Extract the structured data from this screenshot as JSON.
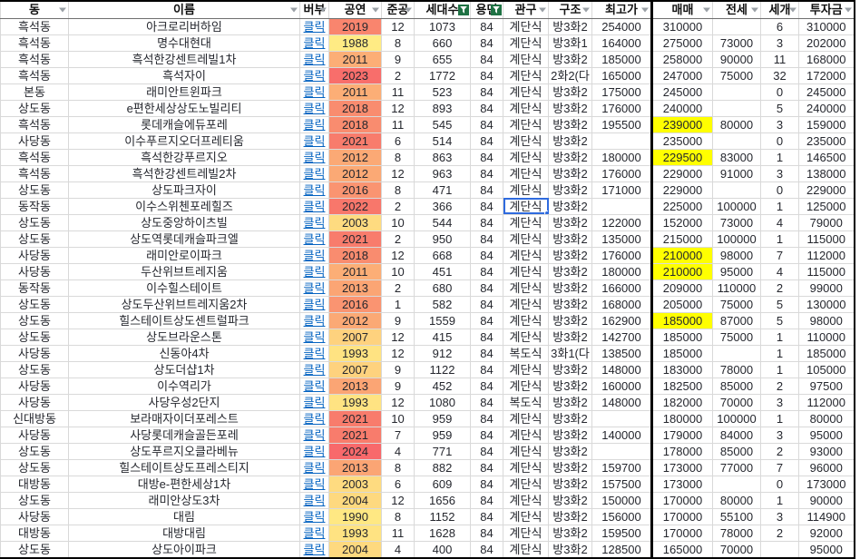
{
  "app": "spreadsheet-apartment-list",
  "link_label": "클릭",
  "colors": {
    "highlight_yellow": "#FFFF00",
    "link_blue": "#0563C1",
    "selection_blue": "#2F6BDE",
    "active_filter_green": "#1F7244",
    "grid_line": "#D9D9D9",
    "thick_border": "#000000"
  },
  "header": {
    "columns": [
      {
        "key": "dong",
        "label": "동",
        "filter": "normal"
      },
      {
        "key": "name",
        "label": "이름",
        "filter": "normal"
      },
      {
        "key": "link",
        "label": "버부",
        "filter": "normal"
      },
      {
        "key": "year",
        "label": "공연",
        "filter": "normal"
      },
      {
        "key": "month",
        "label": "준공",
        "filter": "normal"
      },
      {
        "key": "households",
        "label": "세대수",
        "filter": "active"
      },
      {
        "key": "area",
        "label": "용면",
        "filter": "active"
      },
      {
        "key": "entrance",
        "label": "관구",
        "filter": "normal"
      },
      {
        "key": "layout",
        "label": "구조",
        "filter": "normal"
      },
      {
        "key": "peak",
        "label": "최고가",
        "filter": "normal"
      },
      {
        "key": "sale",
        "label": "매매",
        "filter": "normal"
      },
      {
        "key": "jeonse",
        "label": "전세",
        "filter": "normal"
      },
      {
        "key": "count",
        "label": "세개",
        "filter": "normal"
      },
      {
        "key": "invest",
        "label": "투자금",
        "filter": "normal"
      }
    ]
  },
  "selected": {
    "row": 11,
    "column": "entrance"
  },
  "rows": [
    {
      "dong": "흑석동",
      "name": "아크로리버하임",
      "year": "2019",
      "year_color": "#F9856E",
      "month": "12",
      "households": "1073",
      "area": "84",
      "entrance": "계단식",
      "layout": "방3화2",
      "peak": "254000",
      "sale": "310000",
      "sale_hl": false,
      "jeonse": "",
      "count": "6",
      "invest": "310000"
    },
    {
      "dong": "흑석동",
      "name": "명수대현대",
      "year": "1988",
      "year_color": "#FFEB84",
      "month": "8",
      "households": "660",
      "area": "84",
      "entrance": "계단식",
      "layout": "방3화1",
      "peak": "164000",
      "sale": "275000",
      "sale_hl": false,
      "jeonse": "73000",
      "count": "3",
      "invest": "202000"
    },
    {
      "dong": "흑석동",
      "name": "흑석한강센트레빌1차",
      "year": "2011",
      "year_color": "#FCAE76",
      "month": "9",
      "households": "655",
      "area": "84",
      "entrance": "계단식",
      "layout": "방3화2",
      "peak": "185000",
      "sale": "258000",
      "sale_hl": false,
      "jeonse": "90000",
      "count": "11",
      "invest": "168000"
    },
    {
      "dong": "흑석동",
      "name": "흑석자이",
      "year": "2023",
      "year_color": "#F86E6B",
      "month": "2",
      "households": "1772",
      "area": "84",
      "entrance": "계단식",
      "layout": "2화2(다",
      "peak": "165000",
      "sale": "247000",
      "sale_hl": false,
      "jeonse": "75000",
      "count": "32",
      "invest": "172000"
    },
    {
      "dong": "본동",
      "name": "래미안트윈파크",
      "year": "2011",
      "year_color": "#FCAE76",
      "month": "11",
      "households": "523",
      "area": "84",
      "entrance": "계단식",
      "layout": "방3화2",
      "peak": "175000",
      "sale": "245000",
      "sale_hl": false,
      "jeonse": "",
      "count": "0",
      "invest": "245000"
    },
    {
      "dong": "상도동",
      "name": "e편한세상상도노빌리티",
      "year": "2018",
      "year_color": "#F98C6F",
      "month": "12",
      "households": "893",
      "area": "84",
      "entrance": "계단식",
      "layout": "방3화2",
      "peak": "176000",
      "sale": "240000",
      "sale_hl": false,
      "jeonse": "",
      "count": "5",
      "invest": "240000"
    },
    {
      "dong": "흑석동",
      "name": "롯데캐슬에듀포레",
      "year": "2018",
      "year_color": "#F98C6F",
      "month": "11",
      "households": "545",
      "area": "84",
      "entrance": "계단식",
      "layout": "방3화2",
      "peak": "195500",
      "sale": "239000",
      "sale_hl": true,
      "jeonse": "80000",
      "count": "3",
      "invest": "159000"
    },
    {
      "dong": "사당동",
      "name": "이수푸르지오더프레티움",
      "year": "2021",
      "year_color": "#F87C6C",
      "month": "6",
      "households": "514",
      "area": "84",
      "entrance": "계단식",
      "layout": "방3화2",
      "peak": "",
      "sale": "235000",
      "sale_hl": false,
      "jeonse": "",
      "count": "0",
      "invest": "235000"
    },
    {
      "dong": "흑석동",
      "name": "흑석한강푸르지오",
      "year": "2012",
      "year_color": "#FBA975",
      "month": "8",
      "households": "863",
      "area": "84",
      "entrance": "계단식",
      "layout": "방3화2",
      "peak": "180000",
      "sale": "229500",
      "sale_hl": true,
      "jeonse": "83000",
      "count": "1",
      "invest": "146500"
    },
    {
      "dong": "흑석동",
      "name": "흑석한강센트레빌2차",
      "year": "2012",
      "year_color": "#FBA975",
      "month": "12",
      "households": "963",
      "area": "84",
      "entrance": "계단식",
      "layout": "방3화2",
      "peak": "176000",
      "sale": "229000",
      "sale_hl": false,
      "jeonse": "91000",
      "count": "3",
      "invest": "138000"
    },
    {
      "dong": "상도동",
      "name": "상도파크자이",
      "year": "2016",
      "year_color": "#FA9471",
      "month": "8",
      "households": "471",
      "area": "84",
      "entrance": "계단식",
      "layout": "방3화2",
      "peak": "171000",
      "sale": "229000",
      "sale_hl": false,
      "jeonse": "",
      "count": "0",
      "invest": "229000"
    },
    {
      "dong": "동작동",
      "name": "이수스위첸포레힐즈",
      "year": "2022",
      "year_color": "#F8776B",
      "month": "2",
      "households": "366",
      "area": "84",
      "entrance": "계단식",
      "layout": "방3화2",
      "peak": "",
      "sale": "225000",
      "sale_hl": false,
      "jeonse": "100000",
      "count": "1",
      "invest": "125000"
    },
    {
      "dong": "상도동",
      "name": "상도중앙하이츠빌",
      "year": "2003",
      "year_color": "#FEDB80",
      "month": "10",
      "households": "544",
      "area": "84",
      "entrance": "계단식",
      "layout": "방3화2",
      "peak": "122000",
      "sale": "152000",
      "sale_hl": false,
      "jeonse": "73000",
      "count": "4",
      "invest": "79000"
    },
    {
      "dong": "상도동",
      "name": "상도역롯데캐슬파크엘",
      "year": "2021",
      "year_color": "#F87C6C",
      "month": "2",
      "households": "950",
      "area": "84",
      "entrance": "계단식",
      "layout": "방3화2",
      "peak": "135000",
      "sale": "215000",
      "sale_hl": false,
      "jeonse": "100000",
      "count": "1",
      "invest": "115000"
    },
    {
      "dong": "사당동",
      "name": "래미안로이파크",
      "year": "2018",
      "year_color": "#F98C6F",
      "month": "12",
      "households": "668",
      "area": "84",
      "entrance": "계단식",
      "layout": "방3화2",
      "peak": "176000",
      "sale": "210000",
      "sale_hl": true,
      "jeonse": "98000",
      "count": "7",
      "invest": "112000"
    },
    {
      "dong": "사당동",
      "name": "두산위브트레지움",
      "year": "2011",
      "year_color": "#FCAE76",
      "month": "10",
      "households": "451",
      "area": "84",
      "entrance": "계단식",
      "layout": "방3화2",
      "peak": "180000",
      "sale": "210000",
      "sale_hl": true,
      "jeonse": "95000",
      "count": "4",
      "invest": "115000"
    },
    {
      "dong": "동작동",
      "name": "이수힐스테이트",
      "year": "2013",
      "year_color": "#FBA574",
      "month": "2",
      "households": "680",
      "area": "84",
      "entrance": "계단식",
      "layout": "방3화2",
      "peak": "166000",
      "sale": "209000",
      "sale_hl": false,
      "jeonse": "110000",
      "count": "2",
      "invest": "99000"
    },
    {
      "dong": "상도동",
      "name": "상도두산위브트레지움2차",
      "year": "2016",
      "year_color": "#FA9471",
      "month": "1",
      "households": "582",
      "area": "84",
      "entrance": "계단식",
      "layout": "방3화2",
      "peak": "168000",
      "sale": "205000",
      "sale_hl": false,
      "jeonse": "75000",
      "count": "5",
      "invest": "130000"
    },
    {
      "dong": "상도동",
      "name": "힐스테이트상도센트럴파크",
      "year": "2012",
      "year_color": "#FBA975",
      "month": "9",
      "households": "1559",
      "area": "84",
      "entrance": "계단식",
      "layout": "방3화2",
      "peak": "162900",
      "sale": "185000",
      "sale_hl": true,
      "jeonse": "87000",
      "count": "5",
      "invest": "98000"
    },
    {
      "dong": "상도동",
      "name": "상도브라운스톤",
      "year": "2007",
      "year_color": "#FED27E",
      "month": "12",
      "households": "415",
      "area": "84",
      "entrance": "계단식",
      "layout": "방3화2",
      "peak": "142700",
      "sale": "185000",
      "sale_hl": false,
      "jeonse": "75000",
      "count": "1",
      "invest": "110000"
    },
    {
      "dong": "사당동",
      "name": "신동아4차",
      "year": "1993",
      "year_color": "#FFE382",
      "month": "12",
      "households": "912",
      "area": "84",
      "entrance": "복도식",
      "layout": "3화1(다",
      "peak": "138500",
      "sale": "185000",
      "sale_hl": false,
      "jeonse": "",
      "count": "1",
      "invest": "185000"
    },
    {
      "dong": "상도동",
      "name": "상도더샵1차",
      "year": "2007",
      "year_color": "#FED27E",
      "month": "9",
      "households": "1122",
      "area": "84",
      "entrance": "계단식",
      "layout": "방3화2",
      "peak": "148000",
      "sale": "183000",
      "sale_hl": false,
      "jeonse": "78000",
      "count": "1",
      "invest": "105000"
    },
    {
      "dong": "사당동",
      "name": "이수역리가",
      "year": "2013",
      "year_color": "#FBA574",
      "month": "9",
      "households": "452",
      "area": "84",
      "entrance": "계단식",
      "layout": "방3화2",
      "peak": "160000",
      "sale": "182500",
      "sale_hl": false,
      "jeonse": "85000",
      "count": "2",
      "invest": "97500"
    },
    {
      "dong": "사당동",
      "name": "사당우성2단지",
      "year": "1993",
      "year_color": "#FFE382",
      "month": "12",
      "households": "1080",
      "area": "84",
      "entrance": "복도식",
      "layout": "방3화2",
      "peak": "148000",
      "sale": "182000",
      "sale_hl": false,
      "jeonse": "70000",
      "count": "3",
      "invest": "112000"
    },
    {
      "dong": "신대방동",
      "name": "보라매자이더포레스트",
      "year": "2021",
      "year_color": "#F87C6C",
      "month": "10",
      "households": "959",
      "area": "84",
      "entrance": "계단식",
      "layout": "방3화2",
      "peak": "",
      "sale": "180000",
      "sale_hl": false,
      "jeonse": "100000",
      "count": "1",
      "invest": "80000"
    },
    {
      "dong": "사당동",
      "name": "사당롯데캐슬골든포레",
      "year": "2021",
      "year_color": "#F87C6C",
      "month": "7",
      "households": "959",
      "area": "84",
      "entrance": "계단식",
      "layout": "방3화2",
      "peak": "140000",
      "sale": "179000",
      "sale_hl": false,
      "jeonse": "84000",
      "count": "3",
      "invest": "95000"
    },
    {
      "dong": "상도동",
      "name": "상도푸르지오클라베뉴",
      "year": "2024",
      "year_color": "#F8696B",
      "month": "4",
      "households": "771",
      "area": "84",
      "entrance": "계단식",
      "layout": "방3화2",
      "peak": "",
      "sale": "178000",
      "sale_hl": false,
      "jeonse": "85000",
      "count": "2",
      "invest": "93000"
    },
    {
      "dong": "상도동",
      "name": "힐스테이트상도프레스티지",
      "year": "2013",
      "year_color": "#FBA574",
      "month": "8",
      "households": "882",
      "area": "84",
      "entrance": "계단식",
      "layout": "방3화2",
      "peak": "159700",
      "sale": "173000",
      "sale_hl": false,
      "jeonse": "77000",
      "count": "7",
      "invest": "96000"
    },
    {
      "dong": "대방동",
      "name": "대방e-편한세상1차",
      "year": "2003",
      "year_color": "#FEDB80",
      "month": "6",
      "households": "609",
      "area": "84",
      "entrance": "계단식",
      "layout": "방3화2",
      "peak": "157500",
      "sale": "173000",
      "sale_hl": false,
      "jeonse": "",
      "count": "0",
      "invest": "173000"
    },
    {
      "dong": "상도동",
      "name": "래미안상도3차",
      "year": "2004",
      "year_color": "#FED97F",
      "month": "12",
      "households": "1656",
      "area": "84",
      "entrance": "계단식",
      "layout": "방3화2",
      "peak": "150000",
      "sale": "170000",
      "sale_hl": false,
      "jeonse": "80000",
      "count": "1",
      "invest": "90000"
    },
    {
      "dong": "사당동",
      "name": "대림",
      "year": "1990",
      "year_color": "#FFE883",
      "month": "8",
      "households": "1152",
      "area": "84",
      "entrance": "계단식",
      "layout": "방3화2",
      "peak": "156000",
      "sale": "170000",
      "sale_hl": false,
      "jeonse": "55100",
      "count": "3",
      "invest": "114900"
    },
    {
      "dong": "대방동",
      "name": "대방대림",
      "year": "1993",
      "year_color": "#FFE382",
      "month": "11",
      "households": "1628",
      "area": "84",
      "entrance": "계단식",
      "layout": "방3화2",
      "peak": "159500",
      "sale": "170000",
      "sale_hl": false,
      "jeonse": "78000",
      "count": "2",
      "invest": "92000"
    },
    {
      "dong": "상도동",
      "name": "상도아이파크",
      "year": "2004",
      "year_color": "#FED97F",
      "month": "4",
      "households": "400",
      "area": "84",
      "entrance": "계단식",
      "layout": "방3화2",
      "peak": "128500",
      "sale": "165000",
      "sale_hl": false,
      "jeonse": "70000",
      "count": "",
      "invest": "95000"
    }
  ]
}
